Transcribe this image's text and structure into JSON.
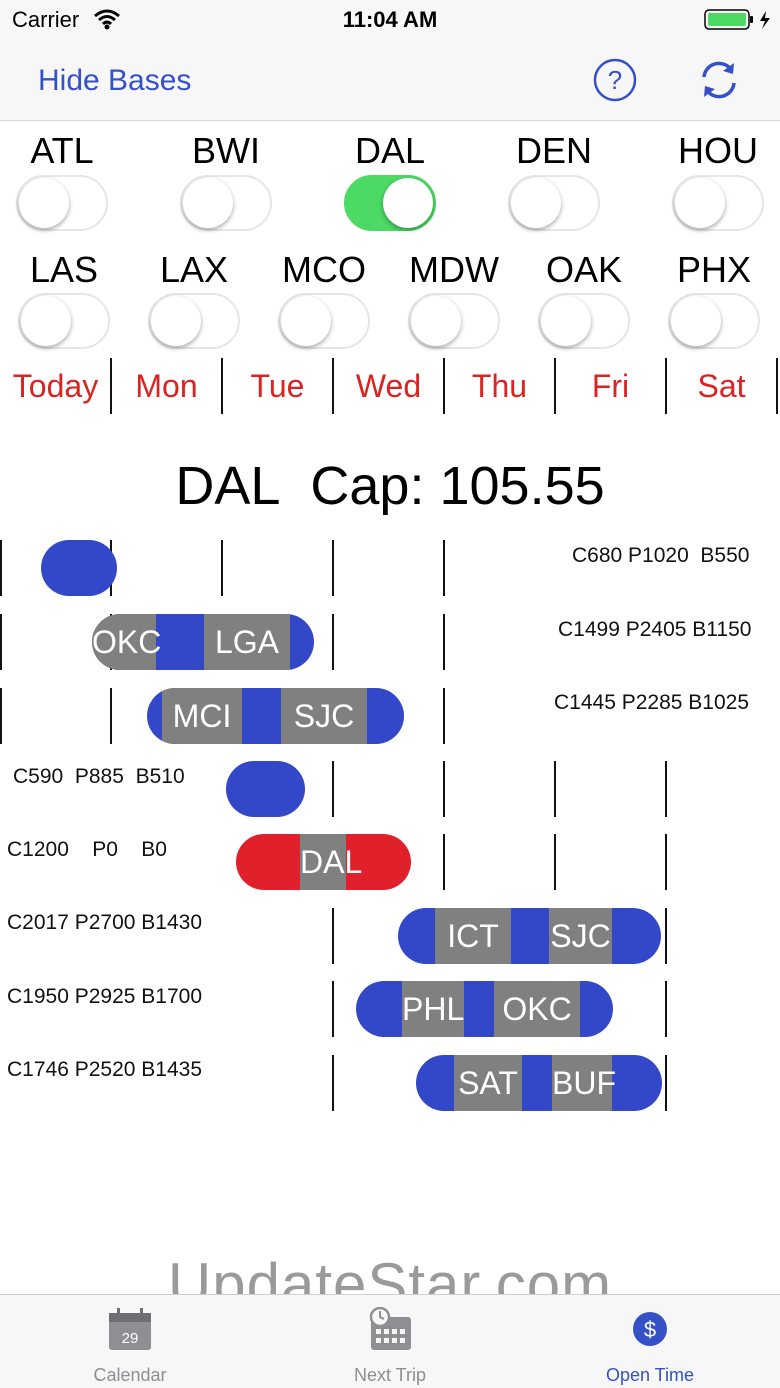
{
  "status_bar": {
    "carrier": "Carrier",
    "time": "11:04 AM"
  },
  "nav": {
    "hide_bases": "Hide Bases",
    "help_icon": "question-circle-icon",
    "refresh_icon": "refresh-icon"
  },
  "bases_row1": [
    {
      "code": "ATL",
      "on": false
    },
    {
      "code": "BWI",
      "on": false
    },
    {
      "code": "DAL",
      "on": true
    },
    {
      "code": "DEN",
      "on": false
    },
    {
      "code": "HOU",
      "on": false
    }
  ],
  "bases_row2": [
    {
      "code": "LAS",
      "on": false
    },
    {
      "code": "LAX",
      "on": false
    },
    {
      "code": "MCO",
      "on": false
    },
    {
      "code": "MDW",
      "on": false
    },
    {
      "code": "OAK",
      "on": false
    },
    {
      "code": "PHX",
      "on": false
    }
  ],
  "days": [
    "Today",
    "Mon",
    "Tue",
    "Wed",
    "Thu",
    "Fri",
    "Sat"
  ],
  "cap": {
    "base": "DAL",
    "label": "Cap:",
    "value": "105.55"
  },
  "trips": [
    {
      "stats": "C680 P1020  B550",
      "segments": []
    },
    {
      "stats": "C1499 P2405 B1150",
      "segments": [
        "OKC",
        "LGA"
      ]
    },
    {
      "stats": "C1445 P2285 B1025",
      "segments": [
        "MCI",
        "SJC"
      ]
    },
    {
      "stats": "C590  P885  B510",
      "segments": []
    },
    {
      "stats": "C1200    P0    B0",
      "segments": [
        "DAL"
      ]
    },
    {
      "stats": "C2017 P2700 B1430",
      "segments": [
        "ICT",
        "SJC"
      ]
    },
    {
      "stats": "C1950 P2925 B1700",
      "segments": [
        "PHL",
        "OKC"
      ]
    },
    {
      "stats": "C1746 P2520 B1435",
      "segments": [
        "SAT",
        "BUF"
      ]
    }
  ],
  "watermark": "UpdateStar.com",
  "tabs": [
    {
      "label": "Calendar",
      "icon": "calendar-icon",
      "day": "29",
      "active": false
    },
    {
      "label": "Next Trip",
      "icon": "next-trip-calendar-icon",
      "active": false
    },
    {
      "label": "Open Time",
      "icon": "dollar-circle-icon",
      "active": true
    }
  ],
  "colors": {
    "accent": "#3451c8",
    "trip_blue": "#3347c9",
    "trip_red": "#e0202a",
    "switch_on": "#4cd964",
    "day_red": "#dd2222"
  }
}
